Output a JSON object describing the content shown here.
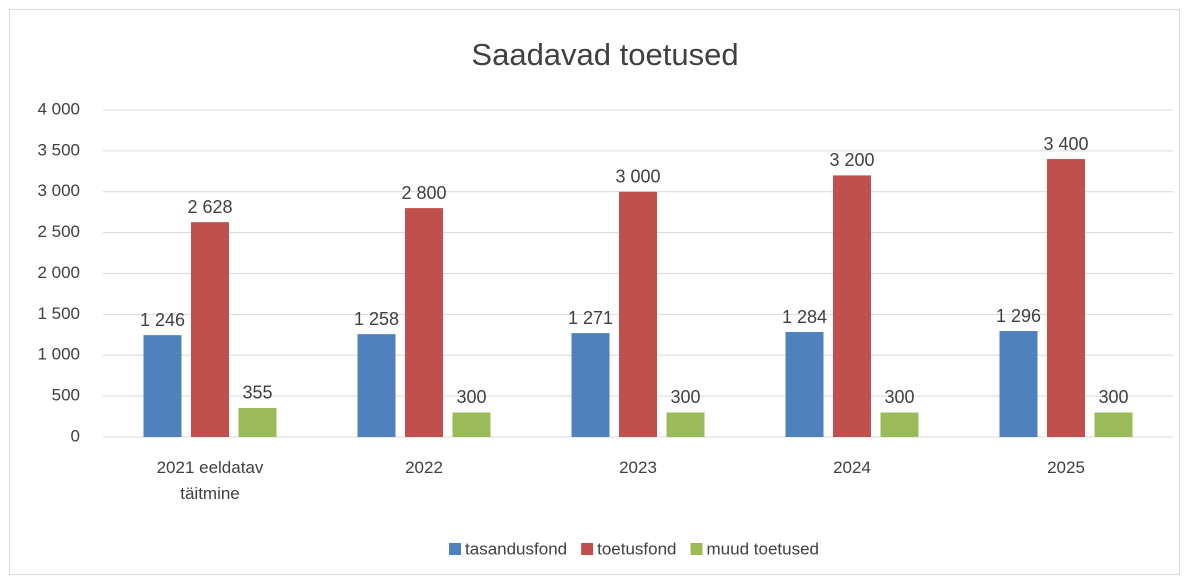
{
  "chart_data": {
    "type": "bar",
    "title": "Saadavad toetused",
    "categories": [
      "2021 eeldatav täitmine",
      "2022",
      "2023",
      "2024",
      "2025"
    ],
    "series": [
      {
        "name": "tasandusfond",
        "color": "#4f81bd",
        "values": [
          1246,
          1258,
          1271,
          1284,
          1296
        ],
        "value_labels": [
          "1 246",
          "1 258",
          "1 271",
          "1 284",
          "1 296"
        ]
      },
      {
        "name": "toetusfond",
        "color": "#c0504d",
        "values": [
          2628,
          2800,
          3000,
          3200,
          3400
        ],
        "value_labels": [
          "2 628",
          "2 800",
          "3 000",
          "3 200",
          "3 400"
        ]
      },
      {
        "name": "muud toetused",
        "color": "#9bbb59",
        "values": [
          355,
          300,
          300,
          300,
          300
        ],
        "value_labels": [
          "355",
          "300",
          "300",
          "300",
          "300"
        ]
      }
    ],
    "ylim": [
      0,
      4000
    ],
    "yticks": [
      0,
      500,
      {
        "value": 1000,
        "label": "1 000"
      },
      {
        "value": 1500,
        "label": "1 500"
      },
      {
        "value": 2000,
        "label": "2 000"
      },
      {
        "value": 2500,
        "label": "2 500"
      },
      {
        "value": 3000,
        "label": "3 000"
      },
      {
        "value": 3500,
        "label": "3 500"
      },
      {
        "value": 4000,
        "label": "4 000"
      }
    ],
    "grid": true,
    "legend": "bottom"
  }
}
